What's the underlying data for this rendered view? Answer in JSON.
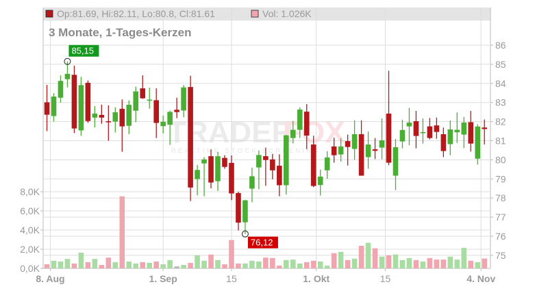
{
  "header": {
    "ohlc_text": "Op:81.69, Hi:82.11, Lo:80.8, Cl:81.61",
    "volume_text": "Vol: 1.026K",
    "subtitle": "3 Monate, 1-Tages-Kerzen"
  },
  "watermark": {
    "brand_left": "TRADER",
    "brand_right": "FOX",
    "tagline": "REALTIME STOCK SCREENING"
  },
  "annotations": {
    "high_label": "85,15",
    "low_label": "76,12"
  },
  "colors": {
    "up": "#4aae34",
    "down": "#b3181b",
    "vol_up": "#a8dca3",
    "vol_down": "#f0a6ae",
    "vol_neutral": "#bbbbbb",
    "high_badge": "#13991e",
    "low_badge": "#d10000",
    "grid": "#dddddd",
    "axis_text": "#999999",
    "header_bg": "#e4e4e4"
  },
  "chart_data": {
    "type": "candlestick",
    "title": "3 Monate, 1-Tages-Kerzen",
    "xlabel": "",
    "ylabel": "",
    "price_axis": {
      "ticks": [
        86,
        85,
        84,
        83,
        82,
        81,
        80,
        79,
        78,
        77,
        76,
        75
      ],
      "range": [
        74.8,
        86.5
      ],
      "position": "right"
    },
    "volume_axis": {
      "ticks": [
        "8,0K",
        "6,0K",
        "4,0K",
        "2,0K",
        "0,0K"
      ],
      "tick_values": [
        8,
        6,
        4,
        2,
        0
      ],
      "unit": "K",
      "position": "left"
    },
    "x_ticks": [
      {
        "label": "8. Aug",
        "index": 0.5,
        "bold": true
      },
      {
        "label": "1. Sep",
        "index": 17,
        "bold": true
      },
      {
        "label": "15",
        "index": 27,
        "bold": false
      },
      {
        "label": "1. Okt",
        "index": 39.4,
        "bold": true
      },
      {
        "label": "15",
        "index": 49.5,
        "bold": false
      },
      {
        "label": "4. Nov",
        "index": 63.5,
        "bold": true
      }
    ],
    "grid": true,
    "last": {
      "open": 81.69,
      "high": 82.11,
      "low": 80.8,
      "close": 81.61,
      "volume_k": 1.026
    },
    "max": {
      "value": 85.15,
      "index": 3
    },
    "min": {
      "value": 76.12,
      "index": 29
    },
    "candles": [
      [
        83.01,
        83.92,
        81.5,
        82.36,
        0.43
      ],
      [
        82.29,
        83.49,
        82.0,
        83.31,
        0.8
      ],
      [
        83.25,
        84.42,
        82.99,
        84.13,
        0.72
      ],
      [
        84.22,
        85.15,
        83.79,
        84.5,
        0.99
      ],
      [
        84.45,
        84.93,
        81.4,
        81.64,
        0.51
      ],
      [
        81.54,
        84.34,
        81.26,
        83.91,
        1.64
      ],
      [
        84.03,
        84.15,
        81.94,
        82.03,
        0.65
      ],
      [
        82.21,
        82.81,
        81.69,
        82.42,
        0.99
      ],
      [
        82.35,
        82.89,
        81.89,
        82.21,
        0.36
      ],
      [
        82.02,
        82.85,
        81.0,
        81.97,
        1.13
      ],
      [
        82.0,
        82.75,
        81.43,
        82.49,
        0.65
      ],
      [
        82.67,
        83.16,
        80.42,
        81.75,
        7.52
      ],
      [
        81.78,
        83.11,
        81.34,
        82.88,
        0.72
      ],
      [
        82.57,
        83.83,
        81.97,
        83.58,
        0.51
      ],
      [
        83.74,
        84.42,
        83.19,
        83.22,
        0.65
      ],
      [
        83.1,
        83.78,
        82.68,
        83.15,
        0.58
      ],
      [
        83.12,
        83.74,
        81.14,
        81.93,
        0.72
      ],
      [
        81.76,
        82.31,
        81.38,
        81.99,
        0.43
      ],
      [
        81.84,
        82.57,
        80.78,
        82.51,
        0.87
      ],
      [
        82.62,
        83.25,
        82.18,
        82.5,
        0.22
      ],
      [
        82.58,
        83.91,
        82.23,
        83.79,
        0.36
      ],
      [
        83.81,
        84.4,
        77.84,
        78.55,
        0.58
      ],
      [
        78.99,
        79.73,
        78.14,
        79.47,
        1.37
      ],
      [
        79.81,
        80.14,
        78.09,
        80.02,
        0.8
      ],
      [
        80.19,
        80.54,
        78.51,
        78.81,
        1.45
      ],
      [
        78.88,
        80.42,
        78.37,
        80.19,
        0.87
      ],
      [
        80.1,
        80.24,
        79.53,
        79.63,
        0.43
      ],
      [
        79.84,
        80.23,
        77.89,
        78.24,
        2.96
      ],
      [
        78.26,
        78.33,
        76.3,
        76.71,
        0.51
      ],
      [
        76.73,
        77.91,
        76.12,
        77.88,
        0.51
      ],
      [
        78.49,
        79.59,
        77.78,
        79.14,
        0.8
      ],
      [
        79.6,
        80.49,
        78.46,
        80.25,
        0.72
      ],
      [
        80.19,
        80.64,
        78.64,
        79.99,
        1.13
      ],
      [
        80.02,
        80.31,
        78.98,
        79.45,
        1.08
      ],
      [
        79.69,
        80.29,
        78.09,
        78.67,
        0.29
      ],
      [
        78.67,
        81.31,
        78.18,
        81.28,
        0.87
      ],
      [
        81.14,
        82.03,
        80.86,
        81.57,
        0.92
      ],
      [
        81.57,
        82.75,
        81.14,
        82.63,
        0.51
      ],
      [
        82.52,
        82.92,
        80.56,
        81.27,
        0.65
      ],
      [
        80.8,
        81.26,
        78.57,
        78.63,
        0.8
      ],
      [
        78.68,
        79.49,
        78.13,
        79.12,
        0.72
      ],
      [
        79.45,
        80.45,
        79.01,
        80.12,
        0.29
      ],
      [
        80.7,
        81.16,
        79.85,
        80.24,
        1.59
      ],
      [
        80.28,
        81.14,
        79.91,
        80.7,
        1.73
      ],
      [
        80.98,
        81.32,
        79.7,
        80.67,
        0.87
      ],
      [
        80.57,
        82.07,
        80.0,
        81.34,
        1.01
      ],
      [
        81.34,
        82.07,
        79.17,
        79.17,
        2.36
      ],
      [
        80.14,
        81.48,
        79.53,
        80.8,
        2.67
      ],
      [
        80.55,
        81.14,
        80.04,
        80.47,
        2.1
      ],
      [
        80.64,
        82.17,
        80.03,
        81.02,
        1.23
      ],
      [
        82.42,
        84.66,
        79.72,
        79.85,
        1.37
      ],
      [
        79.17,
        81.09,
        78.41,
        80.66,
        1.45
      ],
      [
        80.96,
        82.09,
        80.6,
        81.56,
        0.87
      ],
      [
        81.75,
        82.72,
        80.76,
        81.95,
        1.08
      ],
      [
        82.02,
        82.56,
        80.6,
        81.25,
        0.87
      ],
      [
        81.4,
        82.17,
        80.85,
        81.45,
        0.72
      ],
      [
        81.75,
        82.19,
        81.07,
        81.14,
        1.08
      ],
      [
        81.8,
        82.21,
        81.1,
        81.46,
        0.92
      ],
      [
        81.34,
        81.69,
        80.14,
        80.46,
        0.92
      ],
      [
        80.82,
        82.06,
        80.24,
        81.59,
        1.23
      ],
      [
        81.44,
        82.48,
        80.88,
        81.57,
        0.92
      ],
      [
        81.32,
        82.24,
        80.61,
        81.95,
        2.14
      ],
      [
        81.97,
        82.56,
        80.43,
        80.85,
        0.8
      ],
      [
        80.06,
        81.86,
        79.75,
        81.74,
        0.65
      ],
      [
        81.69,
        82.11,
        80.8,
        81.61,
        1.03
      ]
    ],
    "candle_fields": [
      "open",
      "high",
      "low",
      "close",
      "volume_k"
    ],
    "neutral_volume_indices": [
      19
    ]
  }
}
